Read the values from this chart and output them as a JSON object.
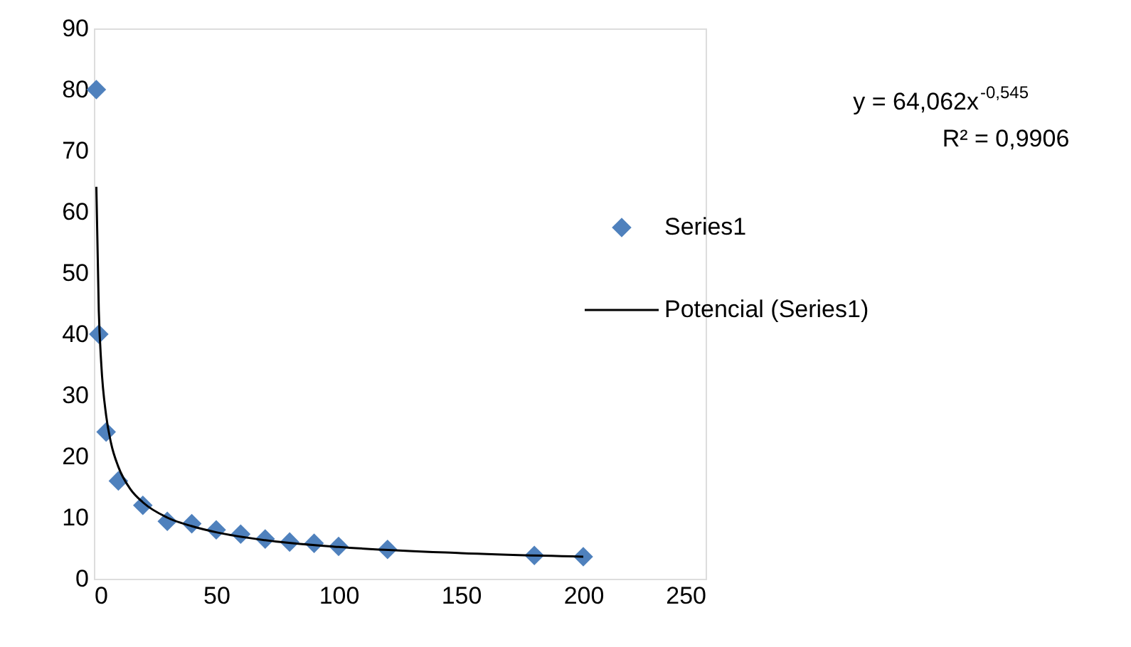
{
  "chart_data": {
    "type": "scatter",
    "xlim": [
      0,
      250
    ],
    "xticks": [
      0,
      50,
      100,
      150,
      200,
      250
    ],
    "ylim": [
      0,
      90
    ],
    "yticks": [
      0,
      10,
      20,
      30,
      40,
      50,
      60,
      70,
      80,
      90
    ],
    "grid": false,
    "legend": "right",
    "marker": "diamond",
    "annotations": [
      "y = 64,062x$^{-0,545}$",
      "R² = 0,9906"
    ],
    "series": [
      {
        "name": "Series1",
        "color": "#4f81bd",
        "x": [
          1,
          2,
          5,
          10,
          20,
          30,
          40,
          50,
          60,
          70,
          80,
          90,
          100,
          120,
          180,
          200
        ],
        "values": [
          80,
          40,
          24,
          16,
          12,
          9.4,
          9,
          8,
          7.3,
          6.5,
          6,
          5.8,
          5.3,
          4.8,
          3.8,
          3.6
        ]
      },
      {
        "name": "Potencial (Series1)",
        "type": "line",
        "color": "#000000",
        "line_style": "solid",
        "marker": "none",
        "x": [
          1,
          2,
          3,
          5,
          7,
          10,
          15,
          20,
          30,
          40,
          50,
          70,
          100,
          150,
          200
        ],
        "values": [
          64.1,
          43.9,
          35.2,
          26.7,
          22.2,
          18.3,
          14.6,
          12.5,
          10,
          8.6,
          7.6,
          6.3,
          5.2,
          4.2,
          3.6
        ]
      }
    ]
  }
}
